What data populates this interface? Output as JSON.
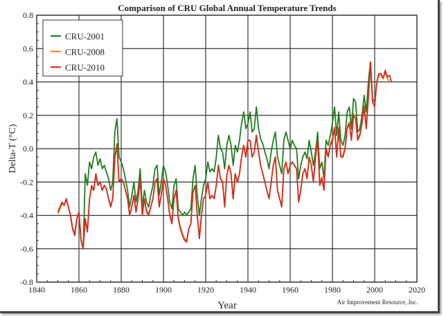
{
  "chart_data": {
    "type": "line",
    "title": "Comparison of CRU Global Annual Temperature Trends",
    "xlabel": "Year",
    "ylabel": "Delta-T (°C)",
    "credit": "Air Improvement Resource, Inc.",
    "xlim": [
      1840,
      2020
    ],
    "ylim": [
      -0.8,
      0.8
    ],
    "x_ticks": [
      1840,
      1860,
      1880,
      1900,
      1920,
      1940,
      1960,
      1980,
      2000,
      2020
    ],
    "x_tick_labels": [
      "1840",
      "1860",
      "1880",
      "1900",
      "1920",
      "1940",
      "1960",
      "1980",
      "2000",
      "2020"
    ],
    "y_ticks": [
      0.8,
      0.6,
      0.4,
      0.2,
      0.0,
      -0.2,
      -0.4,
      -0.6,
      -0.8
    ],
    "y_tick_labels": [
      "0.8",
      "0.6",
      "0.4",
      "0.2",
      "0.0",
      "-0.2",
      "-0.4",
      "-0.6",
      "-0.8"
    ],
    "grid": true,
    "legend_position": "top-left",
    "series": [
      {
        "name": "CRU-2001",
        "color": "#1e7d1e",
        "start_year": 1856,
        "values": [
          -0.4,
          -0.48,
          -0.52,
          -0.42,
          -0.38,
          -0.55,
          -0.6,
          -0.15,
          -0.22,
          -0.08,
          -0.12,
          -0.05,
          -0.02,
          -0.1,
          -0.06,
          -0.12,
          -0.1,
          -0.14,
          -0.18,
          -0.25,
          -0.2,
          0.1,
          0.18,
          -0.05,
          -0.08,
          -0.12,
          -0.18,
          -0.25,
          -0.35,
          -0.28,
          -0.2,
          -0.32,
          -0.25,
          -0.12,
          -0.35,
          -0.25,
          -0.32,
          -0.35,
          -0.28,
          -0.22,
          -0.12,
          -0.1,
          -0.28,
          -0.2,
          -0.1,
          -0.14,
          -0.22,
          -0.32,
          -0.36,
          -0.22,
          -0.18,
          -0.36,
          -0.38,
          -0.4,
          -0.38,
          -0.4,
          -0.38,
          -0.36,
          -0.18,
          -0.1,
          -0.28,
          -0.4,
          -0.3,
          -0.22,
          -0.18,
          -0.08,
          -0.14,
          -0.12,
          -0.14,
          -0.05,
          0.08,
          0.0,
          -0.02,
          -0.12,
          0.02,
          0.08,
          0.02,
          -0.1,
          0.02,
          -0.02,
          0.05,
          0.15,
          0.22,
          0.12,
          0.15,
          0.22,
          0.1,
          0.12,
          0.25,
          0.12,
          0.06,
          0.03,
          -0.02,
          -0.06,
          -0.12,
          -0.02,
          0.05,
          0.1,
          -0.05,
          -0.1,
          -0.15,
          0.05,
          0.1,
          0.05,
          0.0,
          0.05,
          0.02,
          0.0,
          -0.18,
          -0.1,
          -0.05,
          -0.02,
          -0.06,
          0.05,
          -0.02,
          -0.1,
          -0.02,
          0.1,
          -0.12,
          -0.08,
          -0.18,
          0.05,
          0.02,
          0.08,
          0.15,
          0.25,
          0.08,
          0.22,
          0.05,
          0.02,
          0.08,
          0.22,
          0.25,
          0.12,
          0.3,
          0.28,
          0.1,
          0.12,
          0.2,
          0.32,
          0.22,
          0.4,
          0.52,
          0.3,
          0.28
        ]
      },
      {
        "name": "CRU-2008",
        "color": "#e8821e",
        "start_year": 1850,
        "values": [
          -0.39,
          -0.36,
          -0.33,
          -0.34,
          -0.31,
          -0.35,
          -0.4,
          -0.47,
          -0.51,
          -0.42,
          -0.38,
          -0.54,
          -0.59,
          -0.42,
          -0.49,
          -0.3,
          -0.23,
          -0.25,
          -0.16,
          -0.22,
          -0.2,
          -0.25,
          -0.22,
          -0.24,
          -0.3,
          -0.34,
          -0.3,
          -0.06,
          0.02,
          -0.2,
          -0.18,
          -0.2,
          -0.25,
          -0.3,
          -0.39,
          -0.35,
          -0.28,
          -0.37,
          -0.3,
          -0.18,
          -0.39,
          -0.3,
          -0.37,
          -0.39,
          -0.35,
          -0.3,
          -0.2,
          -0.18,
          -0.34,
          -0.28,
          -0.18,
          -0.22,
          -0.3,
          -0.39,
          -0.44,
          -0.3,
          -0.25,
          -0.41,
          -0.47,
          -0.51,
          -0.54,
          -0.55,
          -0.48,
          -0.45,
          -0.26,
          -0.22,
          -0.4,
          -0.53,
          -0.4,
          -0.3,
          -0.28,
          -0.2,
          -0.3,
          -0.28,
          -0.3,
          -0.22,
          -0.1,
          -0.18,
          -0.2,
          -0.34,
          -0.16,
          -0.1,
          -0.15,
          -0.3,
          -0.15,
          -0.2,
          -0.15,
          -0.05,
          0.02,
          -0.05,
          0.05,
          0.05,
          -0.05,
          -0.02,
          0.07,
          -0.02,
          -0.1,
          -0.15,
          -0.2,
          -0.25,
          -0.3,
          -0.2,
          -0.1,
          -0.05,
          -0.25,
          -0.3,
          -0.34,
          -0.12,
          -0.08,
          -0.15,
          -0.1,
          -0.08,
          -0.1,
          -0.12,
          -0.31,
          -0.25,
          -0.15,
          -0.12,
          -0.18,
          -0.05,
          -0.1,
          -0.19,
          -0.05,
          0.05,
          -0.21,
          -0.17,
          -0.24,
          0.0,
          -0.04,
          0.03,
          0.06,
          0.13,
          -0.04,
          0.13,
          -0.04,
          -0.04,
          0.01,
          0.13,
          0.16,
          0.06,
          0.21,
          0.18,
          0.06,
          0.09,
          0.16,
          0.26,
          0.13,
          0.31,
          0.5,
          0.28,
          0.26,
          0.4,
          0.44,
          0.44,
          0.42,
          0.46,
          0.42,
          0.4
        ]
      },
      {
        "name": "CRU-2010",
        "color": "#d42a1e",
        "start_year": 1850,
        "values": [
          -0.38,
          -0.35,
          -0.32,
          -0.34,
          -0.3,
          -0.35,
          -0.4,
          -0.48,
          -0.52,
          -0.42,
          -0.38,
          -0.55,
          -0.6,
          -0.42,
          -0.5,
          -0.3,
          -0.22,
          -0.25,
          -0.15,
          -0.22,
          -0.2,
          -0.25,
          -0.22,
          -0.24,
          -0.3,
          -0.35,
          -0.3,
          -0.05,
          0.03,
          -0.2,
          -0.18,
          -0.2,
          -0.25,
          -0.3,
          -0.4,
          -0.35,
          -0.28,
          -0.38,
          -0.3,
          -0.18,
          -0.4,
          -0.3,
          -0.38,
          -0.4,
          -0.35,
          -0.3,
          -0.2,
          -0.18,
          -0.35,
          -0.28,
          -0.18,
          -0.22,
          -0.3,
          -0.4,
          -0.45,
          -0.3,
          -0.25,
          -0.42,
          -0.48,
          -0.52,
          -0.55,
          -0.56,
          -0.48,
          -0.45,
          -0.26,
          -0.22,
          -0.4,
          -0.54,
          -0.4,
          -0.3,
          -0.28,
          -0.2,
          -0.3,
          -0.28,
          -0.3,
          -0.22,
          -0.1,
          -0.18,
          -0.2,
          -0.35,
          -0.16,
          -0.1,
          -0.15,
          -0.3,
          -0.15,
          -0.2,
          -0.15,
          -0.05,
          0.02,
          -0.05,
          0.05,
          0.05,
          -0.05,
          -0.02,
          0.08,
          -0.02,
          -0.1,
          -0.15,
          -0.2,
          -0.25,
          -0.3,
          -0.2,
          -0.1,
          -0.05,
          -0.25,
          -0.3,
          -0.35,
          -0.12,
          -0.08,
          -0.15,
          -0.1,
          -0.08,
          -0.1,
          -0.12,
          -0.32,
          -0.25,
          -0.15,
          -0.12,
          -0.18,
          -0.05,
          -0.1,
          -0.2,
          -0.05,
          0.05,
          -0.22,
          -0.18,
          -0.25,
          0.0,
          -0.05,
          0.02,
          0.05,
          0.12,
          -0.05,
          0.12,
          -0.05,
          -0.05,
          0.0,
          0.12,
          0.15,
          0.05,
          0.2,
          0.18,
          0.05,
          0.08,
          0.15,
          0.25,
          0.12,
          0.3,
          0.52,
          0.28,
          0.25,
          0.4,
          0.45,
          0.45,
          0.42,
          0.47,
          0.43,
          0.44,
          0.4
        ]
      }
    ]
  }
}
